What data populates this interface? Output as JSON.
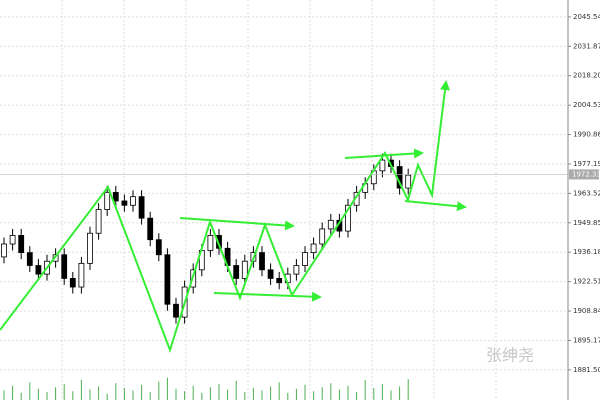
{
  "chart_data": {
    "type": "candlestick",
    "open": [
      1934,
      1940,
      1944,
      1936,
      1930,
      1926,
      1932,
      1935,
      1924,
      1920,
      1931,
      1945,
      1956,
      1964,
      1960,
      1958,
      1962,
      1952,
      1942,
      1935,
      1912,
      1906,
      1920,
      1928,
      1937,
      1944,
      1938,
      1930,
      1924,
      1932,
      1936,
      1928,
      1924,
      1922,
      1926,
      1930,
      1936,
      1940,
      1947,
      1951,
      1946,
      1958,
      1964,
      1968,
      1974,
      1979,
      1976,
      1966
    ],
    "high": [
      1943,
      1947,
      1947,
      1939,
      1933,
      1935,
      1938,
      1938,
      1927,
      1934,
      1948,
      1959,
      1967,
      1967,
      1963,
      1965,
      1965,
      1955,
      1945,
      1938,
      1915,
      1923,
      1931,
      1940,
      1947,
      1947,
      1941,
      1933,
      1935,
      1939,
      1939,
      1931,
      1927,
      1929,
      1933,
      1939,
      1943,
      1950,
      1954,
      1954,
      1961,
      1967,
      1971,
      1977,
      1982,
      1982,
      1979,
      1975
    ],
    "low": [
      1931,
      1937,
      1933,
      1927,
      1923,
      1923,
      1929,
      1921,
      1917,
      1917,
      1928,
      1942,
      1953,
      1957,
      1955,
      1955,
      1949,
      1939,
      1932,
      1909,
      1903,
      1903,
      1917,
      1925,
      1934,
      1935,
      1927,
      1921,
      1921,
      1929,
      1925,
      1921,
      1919,
      1919,
      1923,
      1927,
      1933,
      1937,
      1944,
      1943,
      1943,
      1955,
      1961,
      1965,
      1971,
      1973,
      1963,
      1963
    ],
    "close": [
      1940,
      1944,
      1936,
      1930,
      1926,
      1932,
      1935,
      1924,
      1920,
      1931,
      1945,
      1956,
      1964,
      1960,
      1958,
      1962,
      1952,
      1942,
      1935,
      1912,
      1906,
      1920,
      1928,
      1937,
      1944,
      1938,
      1930,
      1924,
      1932,
      1936,
      1928,
      1924,
      1922,
      1926,
      1930,
      1936,
      1940,
      1947,
      1951,
      1946,
      1958,
      1964,
      1968,
      1974,
      1979,
      1976,
      1966,
      1972
    ],
    "volume": [
      12,
      18,
      9,
      22,
      14,
      10,
      16,
      20,
      11,
      25,
      13,
      17,
      8,
      21,
      15,
      12,
      19,
      10,
      23,
      28,
      14,
      11,
      18,
      9,
      16,
      20,
      13,
      24,
      10,
      15,
      12,
      17,
      22,
      9,
      14,
      19,
      11,
      16,
      21,
      13,
      18,
      10,
      25,
      15,
      20,
      12,
      17,
      26
    ],
    "volume_lim": [
      0,
      40
    ],
    "ylim": [
      1867.5,
      2053.4
    ],
    "yticks": [
      2045.54,
      2031.87,
      {
        "value": 2018.2,
        "label": "2018.20"
      },
      2004.53,
      1990.86,
      1977.19,
      1963.52,
      1949.85,
      1936.18,
      1922.51,
      1908.84,
      1895.17,
      {
        "value": 1881.5,
        "label": "1881.50"
      }
    ],
    "last_price": 1972.33,
    "grid": true,
    "watermark": "张绅尧"
  }
}
